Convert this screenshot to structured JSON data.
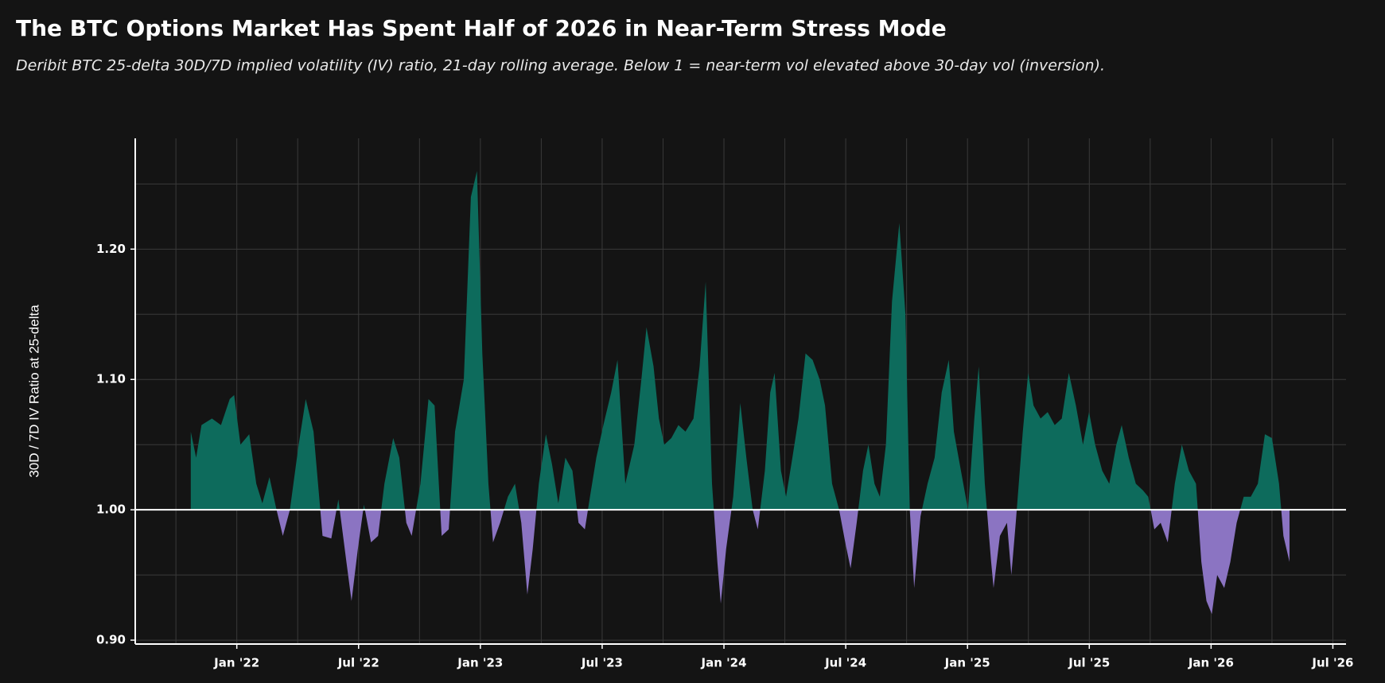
{
  "chart_data": {
    "type": "area",
    "title": "The BTC Options Market Has Spent Half of 2026 in Near-Term Stress Mode",
    "subtitle": "Deribit BTC 25-delta 30D/7D implied volatility (IV) ratio, 21-day rolling average. Below 1 = near-term vol elevated above 30-day vol (inversion).",
    "y_label": "30D / 7D IV Ratio at 25-delta",
    "baseline": 1,
    "color_above": "#0d6b5c",
    "color_below": "#8b74c2",
    "grid": true,
    "xlim": [
      2021.583,
      2026.554
    ],
    "ylim": [
      0.897,
      1.285
    ],
    "xticks": [
      {
        "value": 2022,
        "label": "Jan '22"
      },
      {
        "value": 2022.5,
        "label": "Jul '22"
      },
      {
        "value": 2023,
        "label": "Jan '23"
      },
      {
        "value": 2023.5,
        "label": "Jul '23"
      },
      {
        "value": 2024,
        "label": "Jan '24"
      },
      {
        "value": 2024.5,
        "label": "Jul '24"
      },
      {
        "value": 2025,
        "label": "Jan '25"
      },
      {
        "value": 2025.5,
        "label": "Jul '25"
      },
      {
        "value": 2026,
        "label": "Jan '26"
      },
      {
        "value": 2026.5,
        "label": "Jul '26"
      }
    ],
    "minor_xticks": [
      2021.75,
      2022.25,
      2022.75,
      2023.25,
      2023.75,
      2024.25,
      2024.75,
      2025.25,
      2025.75,
      2026.25
    ],
    "yticks": [
      {
        "value": 0.9,
        "label": "0.90"
      },
      {
        "value": 1,
        "label": "1.00"
      },
      {
        "value": 1.1,
        "label": "1.10"
      },
      {
        "value": 1.2,
        "label": "1.20"
      }
    ],
    "minor_yticks": [
      0.95,
      1.05,
      1.15,
      1.25
    ],
    "x": [
      2021.811,
      2021.833,
      2021.855,
      2021.898,
      2021.935,
      2021.971,
      2021.989,
      2022.015,
      2022.051,
      2022.08,
      2022.105,
      2022.134,
      2022.163,
      2022.189,
      2022.218,
      2022.254,
      2022.283,
      2022.315,
      2022.352,
      2022.388,
      2022.417,
      2022.45,
      2022.471,
      2022.497,
      2022.522,
      2022.551,
      2022.58,
      2022.606,
      2022.642,
      2022.667,
      2022.696,
      2022.718,
      2022.754,
      2022.787,
      2022.812,
      2022.841,
      2022.87,
      2022.896,
      2022.932,
      2022.961,
      2022.986,
      2023.008,
      2023.033,
      2023.052,
      2023.081,
      2023.113,
      2023.142,
      2023.168,
      2023.193,
      2023.215,
      2023.24,
      2023.269,
      2023.294,
      2023.32,
      2023.349,
      2023.378,
      2023.403,
      2023.429,
      2023.45,
      2023.476,
      2023.505,
      2023.537,
      2023.563,
      2023.595,
      2023.632,
      2023.661,
      2023.682,
      2023.711,
      2023.733,
      2023.755,
      2023.784,
      2023.813,
      2023.842,
      2023.875,
      2023.9,
      2023.925,
      2023.951,
      2023.973,
      2023.987,
      2024.009,
      2024.038,
      2024.067,
      2024.092,
      2024.118,
      2024.139,
      2024.168,
      2024.19,
      2024.208,
      2024.234,
      2024.255,
      2024.281,
      2024.306,
      2024.335,
      2024.364,
      2024.393,
      2024.415,
      2024.444,
      2024.473,
      2024.498,
      2024.52,
      2024.545,
      2024.571,
      2024.593,
      2024.618,
      2024.64,
      2024.665,
      2024.69,
      2024.72,
      2024.745,
      2024.763,
      2024.781,
      2024.807,
      2024.836,
      2024.865,
      2024.894,
      2024.923,
      2024.944,
      2024.973,
      2025.002,
      2025.028,
      2025.046,
      2025.071,
      2025.097,
      2025.107,
      2025.133,
      2025.162,
      2025.18,
      2025.198,
      2025.227,
      2025.249,
      2025.271,
      2025.3,
      2025.329,
      2025.358,
      2025.387,
      2025.416,
      2025.445,
      2025.474,
      2025.499,
      2025.524,
      2025.553,
      2025.582,
      2025.611,
      2025.633,
      2025.662,
      2025.691,
      2025.72,
      2025.742,
      2025.767,
      2025.793,
      2025.822,
      2025.851,
      2025.88,
      2025.909,
      2025.938,
      2025.96,
      2025.981,
      2026.003,
      2026.025,
      2026.054,
      2026.079,
      2026.105,
      2026.134,
      2026.163,
      2026.192,
      2026.221,
      2026.25,
      2026.279,
      2026.297,
      2026.322
    ],
    "values": [
      1.06,
      1.04,
      1.065,
      1.07,
      1.065,
      1.085,
      1.088,
      1.05,
      1.058,
      1.02,
      1.005,
      1.025,
      1.0,
      0.98,
      1.0,
      1.05,
      1.085,
      1.06,
      0.98,
      0.978,
      1.008,
      0.96,
      0.93,
      0.97,
      1.004,
      0.975,
      0.98,
      1.02,
      1.055,
      1.04,
      0.99,
      0.98,
      1.02,
      1.085,
      1.08,
      0.98,
      0.985,
      1.06,
      1.1,
      1.24,
      1.26,
      1.12,
      1.02,
      0.975,
      0.99,
      1.01,
      1.02,
      0.99,
      0.935,
      0.97,
      1.02,
      1.058,
      1.035,
      1.005,
      1.04,
      1.03,
      0.99,
      0.985,
      1.01,
      1.04,
      1.065,
      1.09,
      1.115,
      1.02,
      1.05,
      1.1,
      1.14,
      1.11,
      1.07,
      1.05,
      1.055,
      1.065,
      1.06,
      1.07,
      1.11,
      1.175,
      1.02,
      0.96,
      0.928,
      0.97,
      1.01,
      1.082,
      1.04,
      1.0,
      0.985,
      1.03,
      1.09,
      1.105,
      1.03,
      1.01,
      1.04,
      1.07,
      1.12,
      1.115,
      1.1,
      1.08,
      1.02,
      1.0,
      0.975,
      0.955,
      0.99,
      1.03,
      1.05,
      1.02,
      1.01,
      1.05,
      1.16,
      1.22,
      1.15,
      1.0,
      0.94,
      0.995,
      1.02,
      1.04,
      1.09,
      1.115,
      1.06,
      1.03,
      1.0,
      1.07,
      1.11,
      1.02,
      0.96,
      0.94,
      0.98,
      0.99,
      0.95,
      0.99,
      1.06,
      1.105,
      1.08,
      1.07,
      1.075,
      1.065,
      1.07,
      1.105,
      1.08,
      1.05,
      1.075,
      1.05,
      1.03,
      1.02,
      1.05,
      1.065,
      1.04,
      1.02,
      1.015,
      1.01,
      0.985,
      0.99,
      0.975,
      1.02,
      1.05,
      1.03,
      1.02,
      0.96,
      0.93,
      0.92,
      0.95,
      0.94,
      0.96,
      0.99,
      1.01,
      1.01,
      1.02,
      1.058,
      1.055,
      1.02,
      0.98,
      0.96
    ]
  }
}
